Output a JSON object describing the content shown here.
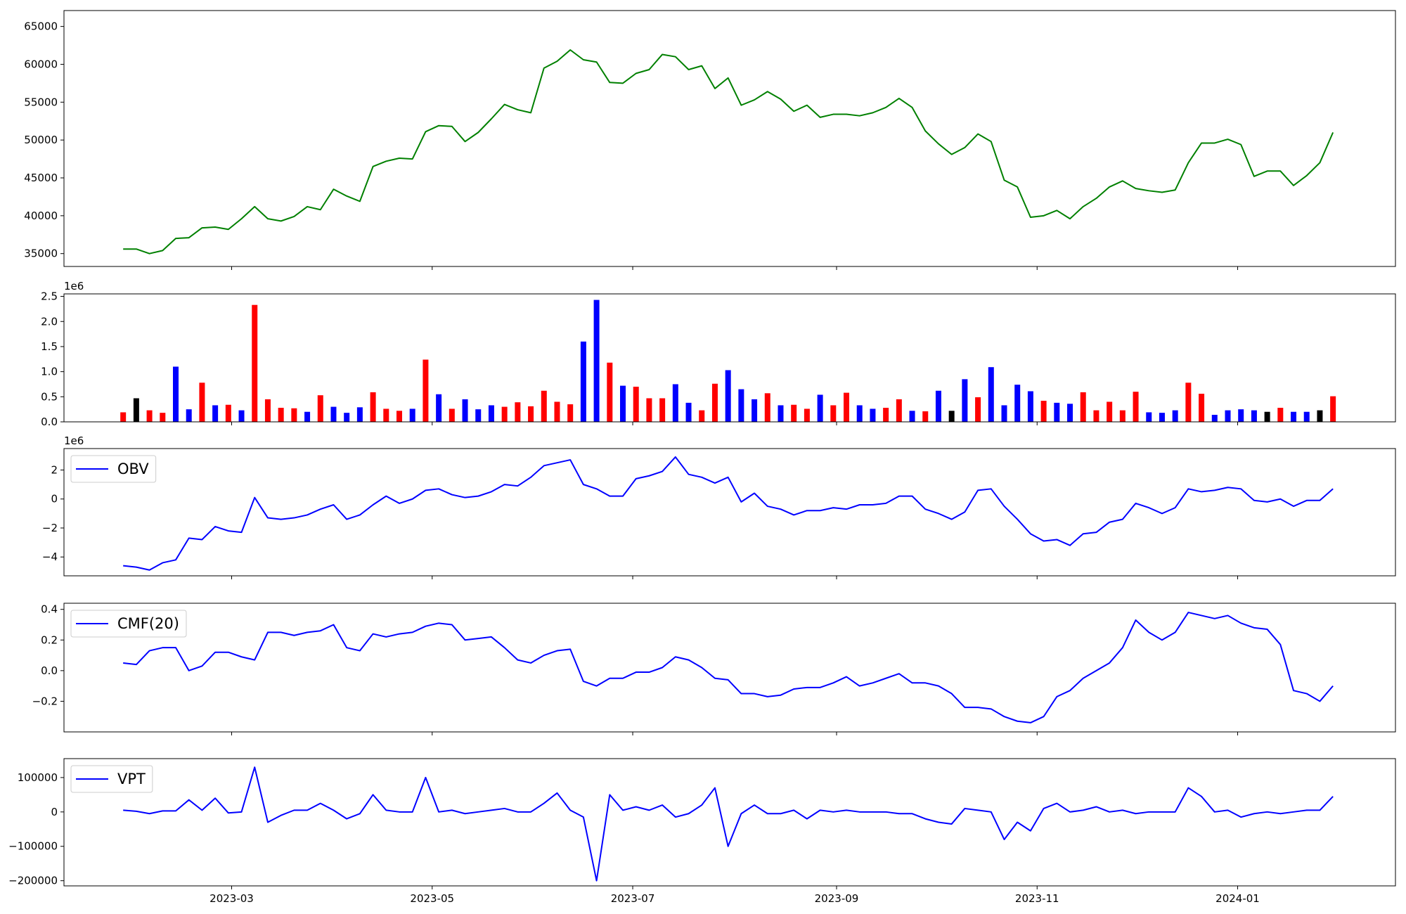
{
  "chart_data": {
    "x": [
      "2023-01-27",
      "2023-01-31",
      "2023-02-04",
      "2023-02-08",
      "2023-02-12",
      "2023-02-16",
      "2023-02-20",
      "2023-02-24",
      "2023-02-28",
      "2023-03-04",
      "2023-03-08",
      "2023-03-12",
      "2023-03-16",
      "2023-03-20",
      "2023-03-24",
      "2023-03-28",
      "2023-04-01",
      "2023-04-05",
      "2023-04-09",
      "2023-04-13",
      "2023-04-17",
      "2023-04-21",
      "2023-04-25",
      "2023-04-29",
      "2023-05-03",
      "2023-05-07",
      "2023-05-11",
      "2023-05-15",
      "2023-05-19",
      "2023-05-23",
      "2023-05-27",
      "2023-05-31",
      "2023-06-04",
      "2023-06-08",
      "2023-06-12",
      "2023-06-16",
      "2023-06-20",
      "2023-06-24",
      "2023-06-28",
      "2023-07-02",
      "2023-07-06",
      "2023-07-10",
      "2023-07-14",
      "2023-07-18",
      "2023-07-22",
      "2023-07-26",
      "2023-07-30",
      "2023-08-03",
      "2023-08-07",
      "2023-08-11",
      "2023-08-15",
      "2023-08-19",
      "2023-08-23",
      "2023-08-27",
      "2023-08-31",
      "2023-09-04",
      "2023-09-08",
      "2023-09-12",
      "2023-09-16",
      "2023-09-20",
      "2023-09-24",
      "2023-09-28",
      "2023-10-02",
      "2023-10-06",
      "2023-10-10",
      "2023-10-14",
      "2023-10-18",
      "2023-10-22",
      "2023-10-26",
      "2023-10-30",
      "2023-11-03",
      "2023-11-07",
      "2023-11-11",
      "2023-11-15",
      "2023-11-19",
      "2023-11-23",
      "2023-11-27",
      "2023-12-01",
      "2023-12-05",
      "2023-12-09",
      "2023-12-13",
      "2023-12-17",
      "2023-12-21",
      "2023-12-25",
      "2023-12-29",
      "2024-01-02",
      "2024-01-06",
      "2024-01-10",
      "2024-01-14",
      "2024-01-18",
      "2024-01-22",
      "2024-01-26",
      "2024-01-30"
    ],
    "xlim": [
      "2023-01-09",
      "2024-02-18"
    ],
    "xticks": [
      {
        "value": "2023-03-01",
        "label": "2023-03"
      },
      {
        "value": "2023-05-01",
        "label": "2023-05"
      },
      {
        "value": "2023-07-01",
        "label": "2023-07"
      },
      {
        "value": "2023-09-01",
        "label": "2023-09"
      },
      {
        "value": "2023-11-01",
        "label": "2023-11"
      },
      {
        "value": "2024-01-01",
        "label": "2024-01"
      }
    ],
    "panels": [
      {
        "type": "line",
        "ylim": [
          33300,
          67100
        ],
        "yticks": [
          35000,
          40000,
          45000,
          50000,
          55000,
          60000,
          65000
        ],
        "series": [
          {
            "color": "#008000",
            "values": [
              35600,
              35600,
              35000,
              35400,
              37000,
              37100,
              38400,
              38500,
              38200,
              39600,
              41200,
              39600,
              39300,
              39900,
              41200,
              40800,
              43500,
              42600,
              41900,
              46500,
              47200,
              47600,
              47500,
              51100,
              51900,
              51800,
              49800,
              51000,
              52800,
              54700,
              54000,
              53600,
              59500,
              60400,
              61900,
              60600,
              60300,
              57600,
              57500,
              58800,
              59300,
              61300,
              61000,
              59300,
              59800,
              56800,
              58200,
              54600,
              55300,
              56400,
              55400,
              53800,
              54600,
              53000,
              53400,
              53400,
              53200,
              53600,
              54300,
              55500,
              54300,
              51200,
              49500,
              48100,
              49000,
              50800,
              49800,
              44700,
              43800,
              39800,
              40000,
              40700,
              39600,
              41200,
              42300,
              43800,
              44600,
              43600,
              43300,
              43100,
              43400,
              47000,
              49600,
              49600,
              50100,
              49400,
              45200,
              45900,
              45900,
              44000,
              45300,
              47000,
              51000
            ]
          }
        ]
      },
      {
        "type": "bar",
        "offset_label": "1e6",
        "ylim": [
          0,
          2550000.0
        ],
        "yticks": [
          {
            "value": 0,
            "label": "0.0"
          },
          {
            "value": 500000.0,
            "label": "0.5"
          },
          {
            "value": 1000000.0,
            "label": "1.0"
          },
          {
            "value": 1500000.0,
            "label": "1.5"
          },
          {
            "value": 2000000.0,
            "label": "2.0"
          },
          {
            "value": 2500000.0,
            "label": "2.5"
          }
        ],
        "series": [
          {
            "values": [
              190000.0,
              470000.0,
              230000.0,
              180000.0,
              1100000.0,
              250000.0,
              780000.0,
              330000.0,
              340000.0,
              230000.0,
              2330000.0,
              450000.0,
              280000.0,
              270000.0,
              200000.0,
              530000.0,
              300000.0,
              180000.0,
              290000.0,
              590000.0,
              260000.0,
              220000.0,
              260000.0,
              1240000.0,
              550000.0,
              260000.0,
              450000.0,
              250000.0,
              330000.0,
              300000.0,
              390000.0,
              310000.0,
              620000.0,
              400000.0,
              350000.0,
              1600000.0,
              2430000.0,
              1180000.0,
              720000.0,
              700000.0,
              470000.0,
              470000.0,
              750000.0,
              380000.0,
              230000.0,
              760000.0,
              1030000.0,
              650000.0,
              450000.0,
              570000.0,
              330000.0,
              340000.0,
              260000.0,
              540000.0,
              330000.0,
              580000.0,
              330000.0,
              260000.0,
              280000.0,
              450000.0,
              220000.0,
              210000.0,
              620000.0,
              220000.0,
              850000.0,
              490000.0,
              1090000.0,
              330000.0,
              740000.0,
              610000.0,
              420000.0,
              380000.0,
              360000.0,
              590000.0,
              230000.0,
              400000.0,
              230000.0,
              600000.0,
              190000.0,
              180000.0,
              230000.0,
              780000.0,
              560000.0,
              140000.0,
              230000.0,
              250000.0,
              230000.0,
              200000.0,
              280000.0,
              200000.0,
              200000.0,
              230000.0,
              510000.0
            ],
            "colors": [
              "red",
              "black",
              "red",
              "red",
              "blue",
              "blue",
              "red",
              "blue",
              "red",
              "blue",
              "red",
              "red",
              "red",
              "red",
              "blue",
              "red",
              "blue",
              "blue",
              "blue",
              "red",
              "red",
              "red",
              "blue",
              "red",
              "blue",
              "red",
              "blue",
              "blue",
              "blue",
              "red",
              "red",
              "red",
              "red",
              "red",
              "red",
              "blue",
              "blue",
              "red",
              "blue",
              "red",
              "red",
              "red",
              "blue",
              "blue",
              "red",
              "red",
              "blue",
              "blue",
              "blue",
              "red",
              "blue",
              "red",
              "red",
              "blue",
              "red",
              "red",
              "blue",
              "blue",
              "red",
              "red",
              "blue",
              "red",
              "blue",
              "black",
              "blue",
              "red",
              "blue",
              "blue",
              "blue",
              "blue",
              "red",
              "blue",
              "blue",
              "red",
              "red",
              "red",
              "red",
              "red",
              "blue",
              "blue",
              "blue",
              "red",
              "red",
              "blue",
              "blue",
              "blue",
              "blue",
              "black",
              "red",
              "blue",
              "blue",
              "black",
              "red"
            ]
          }
        ]
      },
      {
        "type": "line",
        "offset_label": "1e6",
        "legend": "upper left",
        "ylim": [
          -5300000.0,
          3480000.0
        ],
        "yticks": [
          {
            "value": -4000000.0,
            "label": "−4"
          },
          {
            "value": -2000000.0,
            "label": "−2"
          },
          {
            "value": 0,
            "label": "0"
          },
          {
            "value": 2000000.0,
            "label": "2"
          }
        ],
        "series": [
          {
            "name": "OBV",
            "color": "#0000ff",
            "values": [
              -4600000.0,
              -4700000.0,
              -4900000.0,
              -4400000.0,
              -4200000.0,
              -2700000.0,
              -2800000.0,
              -1900000.0,
              -2200000.0,
              -2300000.0,
              100000.0,
              -1300000.0,
              -1400000.0,
              -1300000.0,
              -1100000.0,
              -700000.0,
              -400000.0,
              -1400000.0,
              -1100000.0,
              -400000.0,
              200000.0,
              -300000.0,
              0,
              600000.0,
              700000.0,
              300000.0,
              100000.0,
              200000.0,
              500000.0,
              1000000.0,
              900000.0,
              1500000.0,
              2300000.0,
              2500000.0,
              2700000.0,
              1000000.0,
              700000.0,
              200000.0,
              200000.0,
              1400000.0,
              1600000.0,
              1900000.0,
              2900000.0,
              1700000.0,
              1500000.0,
              1100000.0,
              1500000.0,
              -200000.0,
              400000.0,
              -500000.0,
              -700000.0,
              -1100000.0,
              -800000.0,
              -800000.0,
              -600000.0,
              -700000.0,
              -400000.0,
              -400000.0,
              -300000.0,
              200000.0,
              200000.0,
              -700000.0,
              -1000000.0,
              -1400000.0,
              -900000.0,
              600000.0,
              700000.0,
              -500000.0,
              -1400000.0,
              -2400000.0,
              -2900000.0,
              -2800000.0,
              -3200000.0,
              -2400000.0,
              -2300000.0,
              -1600000.0,
              -1400000.0,
              -300000.0,
              -600000.0,
              -1000000.0,
              -600000.0,
              700000.0,
              500000.0,
              600000.0,
              800000.0,
              700000.0,
              -100000.0,
              -200000.0,
              0,
              -500000.0,
              -100000.0,
              -100000.0,
              700000.0
            ]
          }
        ]
      },
      {
        "type": "line",
        "legend": "upper left",
        "ylim": [
          -0.4,
          0.44
        ],
        "yticks": [
          {
            "value": -0.2,
            "label": "−0.2"
          },
          {
            "value": 0,
            "label": "0.0"
          },
          {
            "value": 0.2,
            "label": "0.2"
          },
          {
            "value": 0.4,
            "label": "0.4"
          }
        ],
        "series": [
          {
            "name": "CMF(20)",
            "color": "#0000ff",
            "values": [
              0.05,
              0.04,
              0.13,
              0.15,
              0.15,
              0,
              0.03,
              0.12,
              0.12,
              0.09,
              0.07,
              0.25,
              0.25,
              0.23,
              0.25,
              0.26,
              0.3,
              0.15,
              0.13,
              0.24,
              0.22,
              0.24,
              0.25,
              0.29,
              0.31,
              0.3,
              0.2,
              0.21,
              0.22,
              0.15,
              0.07,
              0.05,
              0.1,
              0.13,
              0.14,
              -0.07,
              -0.1,
              -0.05,
              -0.05,
              -0.01,
              -0.01,
              0.02,
              0.09,
              0.07,
              0.02,
              -0.05,
              -0.06,
              -0.15,
              -0.15,
              -0.17,
              -0.16,
              -0.12,
              -0.11,
              -0.11,
              -0.08,
              -0.04,
              -0.1,
              -0.08,
              -0.05,
              -0.02,
              -0.08,
              -0.08,
              -0.1,
              -0.15,
              -0.24,
              -0.24,
              -0.25,
              -0.3,
              -0.33,
              -0.34,
              -0.3,
              -0.17,
              -0.13,
              -0.05,
              0,
              0.05,
              0.15,
              0.33,
              0.25,
              0.2,
              0.25,
              0.38,
              0.36,
              0.34,
              0.36,
              0.31,
              0.28,
              0.27,
              0.17,
              -0.13,
              -0.15,
              -0.2,
              -0.1
            ]
          }
        ]
      },
      {
        "type": "line",
        "legend": "upper left",
        "ylim": [
          -215000,
          155000
        ],
        "yticks": [
          {
            "value": -200000,
            "label": "−200000"
          },
          {
            "value": -100000,
            "label": "−100000"
          },
          0,
          100000
        ],
        "series": [
          {
            "name": "VPT",
            "color": "#0000ff",
            "values": [
              5000,
              2000,
              -5000,
              3000,
              3000,
              35000,
              5000,
              40000,
              -3000,
              0,
              130000,
              -30000,
              -10000,
              5000,
              5000,
              25000,
              5000,
              -20000,
              -5000,
              50000,
              5000,
              0,
              0,
              100000,
              0,
              5000,
              -5000,
              0,
              5000,
              10000,
              0,
              0,
              25000,
              55000,
              5000,
              -15000,
              -200000,
              50000,
              5000,
              15000,
              5000,
              20000,
              -15000,
              -5000,
              20000,
              70000,
              -100000,
              -5000,
              20000,
              -5000,
              -5000,
              5000,
              -20000,
              5000,
              0,
              5000,
              0,
              0,
              0,
              -5000,
              -5000,
              -20000,
              -30000,
              -35000,
              10000,
              5000,
              0,
              -80000,
              -30000,
              -55000,
              10000,
              25000,
              0,
              5000,
              15000,
              0,
              5000,
              -5000,
              0,
              0,
              0,
              70000,
              45000,
              0,
              5000,
              -15000,
              -5000,
              0,
              -5000,
              0,
              5000,
              5000,
              45000
            ]
          }
        ]
      }
    ]
  }
}
